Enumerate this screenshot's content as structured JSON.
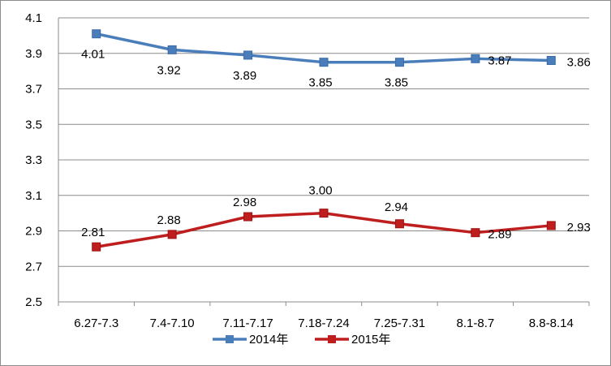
{
  "chart_data": {
    "type": "line",
    "categories": [
      "6.27-7.3",
      "7.4-7.10",
      "7.11-7.17",
      "7.18-7.24",
      "7.25-7.31",
      "8.1-8.7",
      "8.8-8.14"
    ],
    "series": [
      {
        "name": "2014年",
        "color": "#4a7ebb",
        "values": [
          4.01,
          3.92,
          3.89,
          3.85,
          3.85,
          3.87,
          3.86
        ],
        "labels": [
          "4.01",
          "3.92",
          "3.89",
          "3.85",
          "3.85",
          "3.87",
          "3.86"
        ]
      },
      {
        "name": "2015年",
        "color": "#be1e1e",
        "values": [
          2.81,
          2.88,
          2.98,
          3.0,
          2.94,
          2.89,
          2.93
        ],
        "labels": [
          "2.81",
          "2.88",
          "2.98",
          "3.00",
          "2.94",
          "2.89",
          "2.93"
        ]
      }
    ],
    "y_ticks": [
      "2.5",
      "2.7",
      "2.9",
      "3.1",
      "3.3",
      "3.5",
      "3.7",
      "3.9",
      "4.1"
    ],
    "ylim": [
      2.5,
      4.1
    ],
    "grid": true,
    "legend_position": "bottom",
    "title": "",
    "xlabel": "",
    "ylabel": ""
  }
}
